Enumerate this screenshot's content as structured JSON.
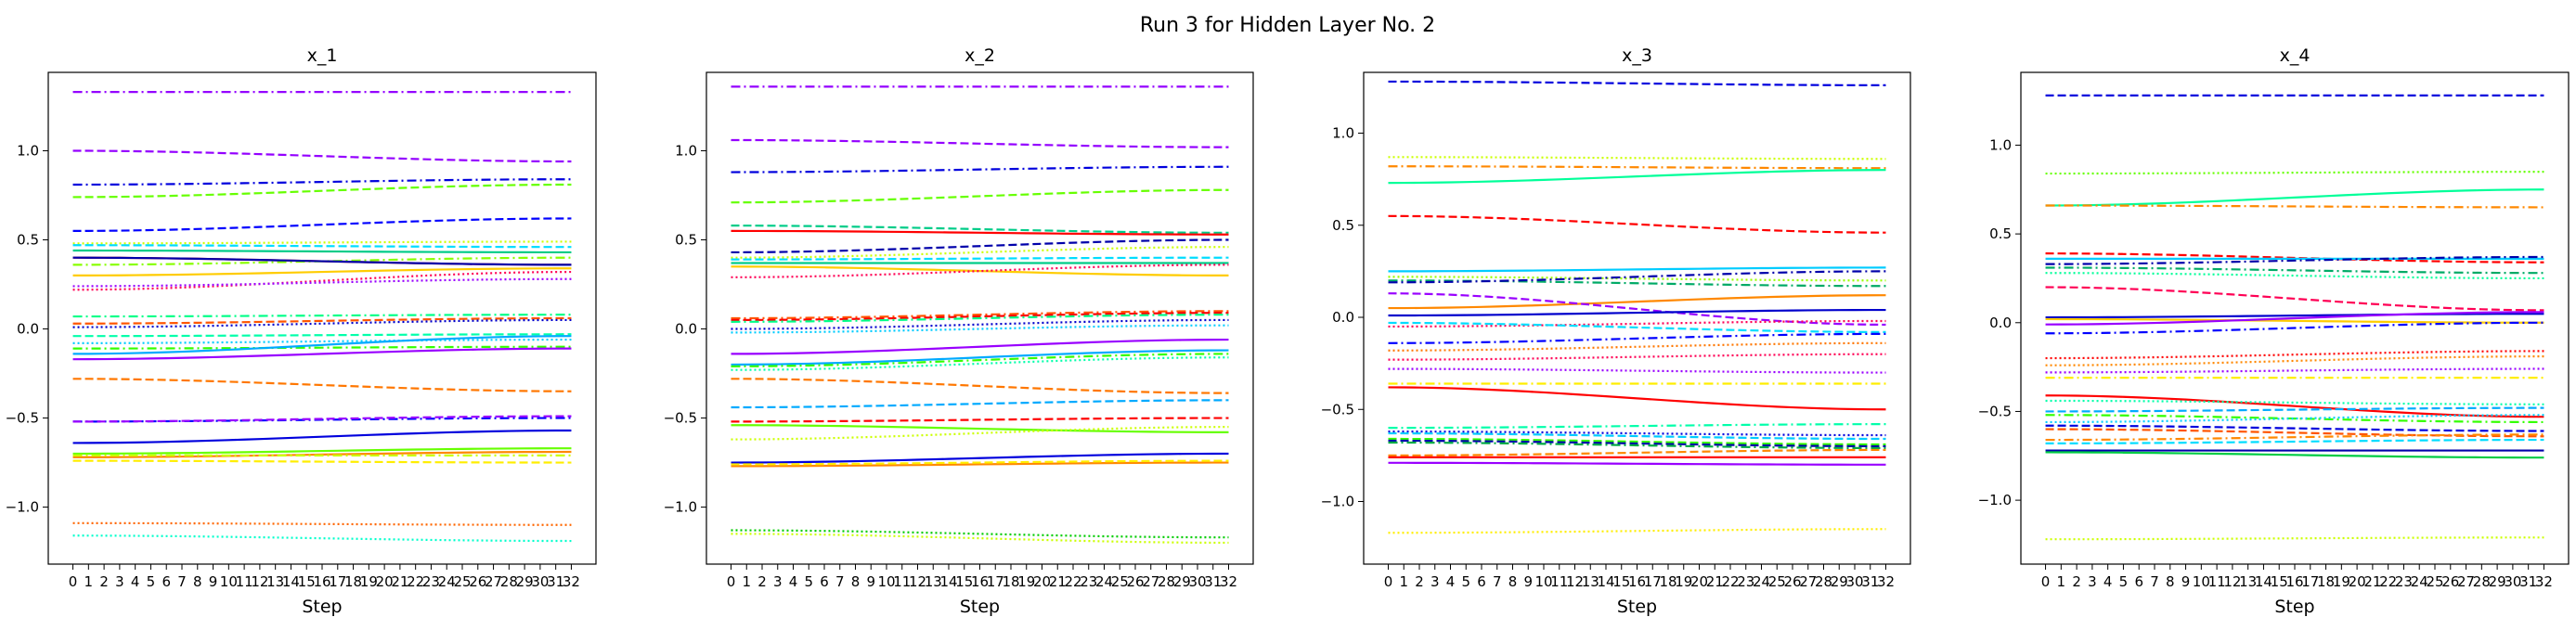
{
  "figure": {
    "suptitle": "Run 3 for Hidden Layer No. 2"
  },
  "chart_data": [
    {
      "type": "line",
      "title": "x_1",
      "xlabel": "Step",
      "ylabel": "",
      "x": [
        0,
        1,
        2,
        3,
        4,
        5,
        6,
        7,
        8,
        9,
        10,
        11,
        12,
        13,
        14,
        15,
        16,
        17,
        18,
        19,
        20,
        21,
        22,
        23,
        24,
        25,
        26,
        27,
        28,
        29,
        30,
        31,
        32
      ],
      "ylim": [
        -1.32,
        1.44
      ],
      "yticks": [
        -1.0,
        -0.5,
        0.0,
        0.5,
        1.0
      ],
      "series": [
        {
          "color": "#9400ff",
          "style": "dashdot",
          "start": 1.33,
          "end": 1.33
        },
        {
          "color": "#9400ff",
          "style": "dashed",
          "start": 1.0,
          "end": 0.94
        },
        {
          "color": "#0000dd",
          "style": "dashdot",
          "start": 0.81,
          "end": 0.84
        },
        {
          "color": "#66ff00",
          "style": "dashed",
          "start": 0.74,
          "end": 0.81
        },
        {
          "color": "#0000ff",
          "style": "dashed",
          "start": 0.55,
          "end": 0.62
        },
        {
          "color": "#ccff00",
          "style": "dotted",
          "start": 0.48,
          "end": 0.49
        },
        {
          "color": "#00ddff",
          "style": "dashed",
          "start": 0.47,
          "end": 0.46
        },
        {
          "color": "#00cc88",
          "style": "solid",
          "start": 0.44,
          "end": 0.43
        },
        {
          "color": "#ff0000",
          "style": "solid",
          "start": 0.4,
          "end": 0.36
        },
        {
          "color": "#88ff00",
          "style": "dashdot",
          "start": 0.36,
          "end": 0.4
        },
        {
          "color": "#0000aa",
          "style": "solid",
          "start": 0.4,
          "end": 0.36
        },
        {
          "color": "#ff0055",
          "style": "dotted",
          "start": 0.22,
          "end": 0.32
        },
        {
          "color": "#9900ff",
          "style": "dotted",
          "start": 0.24,
          "end": 0.28
        },
        {
          "color": "#ffcc00",
          "style": "solid",
          "start": 0.3,
          "end": 0.34
        },
        {
          "color": "#00ff88",
          "style": "dashdot",
          "start": 0.07,
          "end": 0.08
        },
        {
          "color": "#ff5500",
          "style": "dashed",
          "start": 0.03,
          "end": 0.06
        },
        {
          "color": "#0000cc",
          "style": "dotted",
          "start": 0.01,
          "end": 0.05
        },
        {
          "color": "#00ffaa",
          "style": "dashed",
          "start": -0.04,
          "end": -0.03
        },
        {
          "color": "#00ccff",
          "style": "dotted",
          "start": -0.08,
          "end": -0.06
        },
        {
          "color": "#33ff00",
          "style": "dashdot",
          "start": -0.11,
          "end": -0.1
        },
        {
          "color": "#00aaff",
          "style": "solid",
          "start": -0.14,
          "end": -0.04
        },
        {
          "color": "#9900ff",
          "style": "solid",
          "start": -0.17,
          "end": -0.11
        },
        {
          "color": "#ff7700",
          "style": "dashed",
          "start": -0.28,
          "end": -0.35
        },
        {
          "color": "#0000ff",
          "style": "dashdot",
          "start": -0.52,
          "end": -0.5
        },
        {
          "color": "#9900ff",
          "style": "dashed",
          "start": -0.52,
          "end": -0.49
        },
        {
          "color": "#0000dd",
          "style": "solid",
          "start": -0.64,
          "end": -0.57
        },
        {
          "color": "#66ff00",
          "style": "solid",
          "start": -0.7,
          "end": -0.67
        },
        {
          "color": "#ff8800",
          "style": "solid",
          "start": -0.72,
          "end": -0.69
        },
        {
          "color": "#ccff00",
          "style": "dashdot",
          "start": -0.71,
          "end": -0.71
        },
        {
          "color": "#ffee00",
          "style": "dashed",
          "start": -0.74,
          "end": -0.75
        },
        {
          "color": "#ff6600",
          "style": "dotted",
          "start": -1.09,
          "end": -1.1
        },
        {
          "color": "#00ffcc",
          "style": "dotted",
          "start": -1.16,
          "end": -1.19
        }
      ]
    },
    {
      "type": "line",
      "title": "x_2",
      "xlabel": "Step",
      "ylabel": "",
      "x": [
        0,
        1,
        2,
        3,
        4,
        5,
        6,
        7,
        8,
        9,
        10,
        11,
        12,
        13,
        14,
        15,
        16,
        17,
        18,
        19,
        20,
        21,
        22,
        23,
        24,
        25,
        26,
        27,
        28,
        29,
        30,
        31,
        32
      ],
      "ylim": [
        -1.32,
        1.44
      ],
      "yticks": [
        -1.0,
        -0.5,
        0.0,
        0.5,
        1.0
      ],
      "series": [
        {
          "color": "#9400ff",
          "style": "dashdot",
          "start": 1.36,
          "end": 1.36
        },
        {
          "color": "#9400ff",
          "style": "dashed",
          "start": 1.06,
          "end": 1.02
        },
        {
          "color": "#0000dd",
          "style": "dashdot",
          "start": 0.88,
          "end": 0.91
        },
        {
          "color": "#66ff00",
          "style": "dashed",
          "start": 0.71,
          "end": 0.78
        },
        {
          "color": "#00cc88",
          "style": "dashed",
          "start": 0.58,
          "end": 0.54
        },
        {
          "color": "#ff0000",
          "style": "solid",
          "start": 0.55,
          "end": 0.53
        },
        {
          "color": "#0000aa",
          "style": "dashed",
          "start": 0.43,
          "end": 0.5
        },
        {
          "color": "#ccff00",
          "style": "dotted",
          "start": 0.4,
          "end": 0.46
        },
        {
          "color": "#00ddff",
          "style": "dashed",
          "start": 0.39,
          "end": 0.4
        },
        {
          "color": "#00cc88",
          "style": "solid",
          "start": 0.37,
          "end": 0.37
        },
        {
          "color": "#ffcc00",
          "style": "solid",
          "start": 0.35,
          "end": 0.3
        },
        {
          "color": "#ff0055",
          "style": "dotted",
          "start": 0.29,
          "end": 0.36
        },
        {
          "color": "#ff5500",
          "style": "dashdot",
          "start": 0.06,
          "end": 0.1
        },
        {
          "color": "#ff0000",
          "style": "dashed",
          "start": 0.05,
          "end": 0.09
        },
        {
          "color": "#00ff88",
          "style": "dashdot",
          "start": 0.04,
          "end": 0.08
        },
        {
          "color": "#0000cc",
          "style": "dotted",
          "start": 0.0,
          "end": 0.05
        },
        {
          "color": "#00ccff",
          "style": "dotted",
          "start": -0.02,
          "end": 0.02
        },
        {
          "color": "#9900ff",
          "style": "solid",
          "start": -0.14,
          "end": -0.06
        },
        {
          "color": "#00aaff",
          "style": "solid",
          "start": -0.2,
          "end": -0.12
        },
        {
          "color": "#33ff00",
          "style": "dashdot",
          "start": -0.21,
          "end": -0.14
        },
        {
          "color": "#00ffaa",
          "style": "dotted",
          "start": -0.23,
          "end": -0.16
        },
        {
          "color": "#ff7700",
          "style": "dashed",
          "start": -0.28,
          "end": -0.36
        },
        {
          "color": "#00aaff",
          "style": "dashed",
          "start": -0.44,
          "end": -0.4
        },
        {
          "color": "#ff0000",
          "style": "dashed",
          "start": -0.52,
          "end": -0.5
        },
        {
          "color": "#66ff00",
          "style": "solid",
          "start": -0.54,
          "end": -0.58
        },
        {
          "color": "#ccff00",
          "style": "dotted",
          "start": -0.62,
          "end": -0.55
        },
        {
          "color": "#0000dd",
          "style": "solid",
          "start": -0.75,
          "end": -0.7
        },
        {
          "color": "#ff8800",
          "style": "solid",
          "start": -0.77,
          "end": -0.75
        },
        {
          "color": "#ffee00",
          "style": "dashed",
          "start": -0.76,
          "end": -0.74
        },
        {
          "color": "#00cc00",
          "style": "dotted",
          "start": -1.13,
          "end": -1.17
        },
        {
          "color": "#ccff00",
          "style": "dotted",
          "start": -1.15,
          "end": -1.2
        }
      ]
    },
    {
      "type": "line",
      "title": "x_3",
      "xlabel": "Step",
      "ylabel": "",
      "x": [
        0,
        1,
        2,
        3,
        4,
        5,
        6,
        7,
        8,
        9,
        10,
        11,
        12,
        13,
        14,
        15,
        16,
        17,
        18,
        19,
        20,
        21,
        22,
        23,
        24,
        25,
        26,
        27,
        28,
        29,
        30,
        31,
        32
      ],
      "ylim": [
        -1.34,
        1.33
      ],
      "yticks": [
        -1.0,
        -0.5,
        0.0,
        0.5,
        1.0
      ],
      "series": [
        {
          "color": "#0000dd",
          "style": "dashed",
          "start": 1.28,
          "end": 1.26
        },
        {
          "color": "#ccff00",
          "style": "dotted",
          "start": 0.87,
          "end": 0.86
        },
        {
          "color": "#ff8800",
          "style": "dashdot",
          "start": 0.82,
          "end": 0.81
        },
        {
          "color": "#00ff99",
          "style": "solid",
          "start": 0.73,
          "end": 0.8
        },
        {
          "color": "#ff0000",
          "style": "dashed",
          "start": 0.55,
          "end": 0.46
        },
        {
          "color": "#00ccff",
          "style": "solid",
          "start": 0.25,
          "end": 0.27
        },
        {
          "color": "#99ff00",
          "style": "dotted",
          "start": 0.22,
          "end": 0.2
        },
        {
          "color": "#00aa66",
          "style": "dashdot",
          "start": 0.2,
          "end": 0.17
        },
        {
          "color": "#0000aa",
          "style": "dashdot",
          "start": 0.19,
          "end": 0.25
        },
        {
          "color": "#ff8800",
          "style": "solid",
          "start": 0.05,
          "end": 0.12
        },
        {
          "color": "#9900ff",
          "style": "dashed",
          "start": 0.13,
          "end": -0.04
        },
        {
          "color": "#0000cc",
          "style": "solid",
          "start": 0.01,
          "end": 0.04
        },
        {
          "color": "#ff0055",
          "style": "dotted",
          "start": -0.05,
          "end": -0.02
        },
        {
          "color": "#00ddff",
          "style": "dashed",
          "start": -0.03,
          "end": -0.08
        },
        {
          "color": "#0000ff",
          "style": "dashdot",
          "start": -0.14,
          "end": -0.09
        },
        {
          "color": "#ff7700",
          "style": "dotted",
          "start": -0.18,
          "end": -0.14
        },
        {
          "color": "#ff0055",
          "style": "dotted",
          "start": -0.23,
          "end": -0.2
        },
        {
          "color": "#9900ff",
          "style": "dotted",
          "start": -0.28,
          "end": -0.3
        },
        {
          "color": "#ffee00",
          "style": "dashdot",
          "start": -0.36,
          "end": -0.36
        },
        {
          "color": "#ff0000",
          "style": "solid",
          "start": -0.38,
          "end": -0.5
        },
        {
          "color": "#00ffaa",
          "style": "dashdot",
          "start": -0.6,
          "end": -0.58
        },
        {
          "color": "#0000dd",
          "style": "dotted",
          "start": -0.62,
          "end": -0.64
        },
        {
          "color": "#00ccff",
          "style": "dashed",
          "start": -0.63,
          "end": -0.66
        },
        {
          "color": "#33ff00",
          "style": "dashed",
          "start": -0.66,
          "end": -0.69
        },
        {
          "color": "#0000aa",
          "style": "dashed",
          "start": -0.67,
          "end": -0.7
        },
        {
          "color": "#00aa44",
          "style": "dashdot",
          "start": -0.68,
          "end": -0.71
        },
        {
          "color": "#ff8800",
          "style": "dashed",
          "start": -0.75,
          "end": -0.72
        },
        {
          "color": "#ff0000",
          "style": "solid",
          "start": -0.76,
          "end": -0.76
        },
        {
          "color": "#9900ff",
          "style": "solid",
          "start": -0.79,
          "end": -0.8
        },
        {
          "color": "#ffee00",
          "style": "dotted",
          "start": -1.17,
          "end": -1.15
        }
      ]
    },
    {
      "type": "line",
      "title": "x_4",
      "xlabel": "Step",
      "ylabel": "",
      "x": [
        0,
        1,
        2,
        3,
        4,
        5,
        6,
        7,
        8,
        9,
        10,
        11,
        12,
        13,
        14,
        15,
        16,
        17,
        18,
        19,
        20,
        21,
        22,
        23,
        24,
        25,
        26,
        27,
        28,
        29,
        30,
        31,
        32
      ],
      "ylim": [
        -1.36,
        1.41
      ],
      "yticks": [
        -1.0,
        -0.5,
        0.0,
        0.5,
        1.0
      ],
      "series": [
        {
          "color": "#0000dd",
          "style": "dashed",
          "start": 1.28,
          "end": 1.28
        },
        {
          "color": "#66ff00",
          "style": "dotted",
          "start": 0.84,
          "end": 0.85
        },
        {
          "color": "#00ff99",
          "style": "solid",
          "start": 0.66,
          "end": 0.75
        },
        {
          "color": "#ff8800",
          "style": "dashdot",
          "start": 0.66,
          "end": 0.65
        },
        {
          "color": "#ff0000",
          "style": "dashed",
          "start": 0.39,
          "end": 0.34
        },
        {
          "color": "#00ccff",
          "style": "solid",
          "start": 0.36,
          "end": 0.36
        },
        {
          "color": "#0000aa",
          "style": "dashdot",
          "start": 0.33,
          "end": 0.37
        },
        {
          "color": "#00aa66",
          "style": "dashdot",
          "start": 0.31,
          "end": 0.28
        },
        {
          "color": "#00ff99",
          "style": "dotted",
          "start": 0.28,
          "end": 0.25
        },
        {
          "color": "#ff0055",
          "style": "dashed",
          "start": 0.2,
          "end": 0.07
        },
        {
          "color": "#0000cc",
          "style": "solid",
          "start": 0.03,
          "end": 0.05
        },
        {
          "color": "#ffcc00",
          "style": "solid",
          "start": 0.02,
          "end": 0.0
        },
        {
          "color": "#9900ff",
          "style": "solid",
          "start": -0.01,
          "end": 0.06
        },
        {
          "color": "#0000ff",
          "style": "dashdot",
          "start": -0.06,
          "end": 0.0
        },
        {
          "color": "#ff0000",
          "style": "dotted",
          "start": -0.2,
          "end": -0.16
        },
        {
          "color": "#ff8800",
          "style": "dotted",
          "start": -0.24,
          "end": -0.19
        },
        {
          "color": "#9900ff",
          "style": "dotted",
          "start": -0.28,
          "end": -0.26
        },
        {
          "color": "#ffee00",
          "style": "dashdot",
          "start": -0.31,
          "end": -0.31
        },
        {
          "color": "#ff0000",
          "style": "solid",
          "start": -0.41,
          "end": -0.53
        },
        {
          "color": "#00ffaa",
          "style": "dotted",
          "start": -0.44,
          "end": -0.46
        },
        {
          "color": "#00aaff",
          "style": "dashed",
          "start": -0.5,
          "end": -0.48
        },
        {
          "color": "#33ff00",
          "style": "dashdot",
          "start": -0.52,
          "end": -0.56
        },
        {
          "color": "#00ccff",
          "style": "dotted",
          "start": -0.56,
          "end": -0.52
        },
        {
          "color": "#0000dd",
          "style": "dashed",
          "start": -0.58,
          "end": -0.61
        },
        {
          "color": "#ff5500",
          "style": "dashed",
          "start": -0.6,
          "end": -0.64
        },
        {
          "color": "#ff8800",
          "style": "dashdot",
          "start": -0.66,
          "end": -0.63
        },
        {
          "color": "#00ddff",
          "style": "dashed",
          "start": -0.68,
          "end": -0.66
        },
        {
          "color": "#0000aa",
          "style": "solid",
          "start": -0.72,
          "end": -0.72
        },
        {
          "color": "#00cc44",
          "style": "solid",
          "start": -0.73,
          "end": -0.76
        },
        {
          "color": "#ccff00",
          "style": "dotted",
          "start": -1.22,
          "end": -1.21
        }
      ]
    }
  ]
}
